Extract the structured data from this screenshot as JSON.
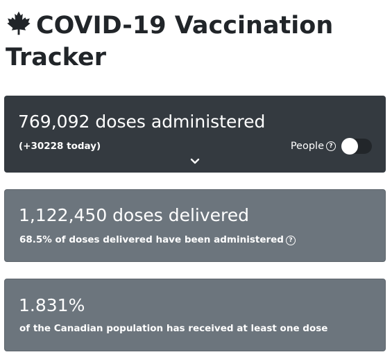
{
  "header": {
    "title": "COVID-19 Vaccination Tracker",
    "icon": "maple-leaf-icon"
  },
  "administered": {
    "headline": "769,092 doses administered",
    "today": "(+30228 today)",
    "toggle_label": "People",
    "toggle_on": false,
    "help_icon": "question-circle-icon",
    "expand_icon": "chevron-down-icon"
  },
  "delivered": {
    "headline": "1,122,450 doses delivered",
    "subtext": "68.5% of doses delivered have been administered",
    "help_icon": "question-circle-icon"
  },
  "population": {
    "headline": "1.831%",
    "subtext": "of the Canadian population has received at least one dose"
  },
  "colors": {
    "dark_card": "#343a40",
    "grey_card": "#6c757d",
    "text_on_card": "#ffffff",
    "title": "#212529"
  }
}
